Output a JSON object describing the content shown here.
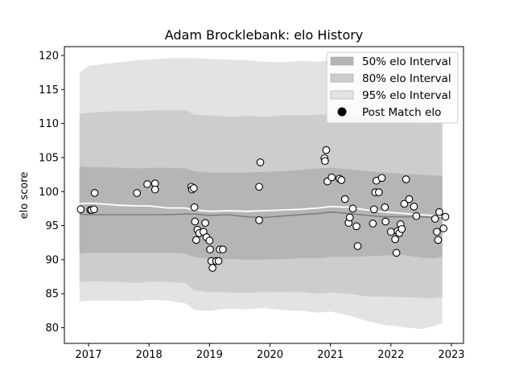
{
  "chart_data": {
    "type": "area",
    "title": "Adam Brocklebank: elo History",
    "xlabel": "",
    "ylabel": "elo score",
    "xlim": [
      2016.6,
      2023.2
    ],
    "ylim": [
      77.7,
      121.3
    ],
    "x_ticks": [
      2017,
      2018,
      2019,
      2020,
      2021,
      2022,
      2023
    ],
    "y_ticks": [
      80,
      85,
      90,
      95,
      100,
      105,
      110,
      115,
      120
    ],
    "grid": false,
    "legend_placement": "top-right",
    "colors": {
      "band_95": "#e3e3e3",
      "band_80": "#cdcdcd",
      "band_50": "#b5b5b5",
      "median_line": "#7f7f7f",
      "mean_line": "#ffffff",
      "points_fill": "#ffffff",
      "points_edge": "#000000",
      "legend_marker": "#000000"
    },
    "legend": [
      {
        "label": "50% elo Interval",
        "kind": "patch",
        "color": "#b5b5b5"
      },
      {
        "label": "80% elo Interval",
        "kind": "patch",
        "color": "#cdcdcd"
      },
      {
        "label": "95% elo Interval",
        "kind": "patch",
        "color": "#e3e3e3"
      },
      {
        "label": "Post Match elo",
        "kind": "marker",
        "color": "#000000"
      }
    ],
    "intervals": {
      "x": [
        2016.85,
        2017.0,
        2017.2,
        2017.5,
        2017.8,
        2018.0,
        2018.3,
        2018.6,
        2018.75,
        2019.0,
        2019.3,
        2019.6,
        2019.9,
        2020.2,
        2020.5,
        2020.8,
        2021.0,
        2021.3,
        2021.6,
        2021.9,
        2022.2,
        2022.5,
        2022.7,
        2022.85
      ],
      "band_95": {
        "lower": [
          83.8,
          84.0,
          84.0,
          84.0,
          83.9,
          84.1,
          84.0,
          83.6,
          82.6,
          82.5,
          82.8,
          82.7,
          82.9,
          82.6,
          82.5,
          82.2,
          82.4,
          81.8,
          81.0,
          80.4,
          80.1,
          79.8,
          80.2,
          80.6
        ],
        "upper": [
          117.4,
          118.5,
          118.7,
          119.0,
          119.3,
          119.4,
          119.6,
          119.6,
          119.6,
          119.5,
          119.4,
          119.3,
          119.1,
          119.0,
          119.2,
          119.1,
          119.3,
          119.1,
          119.2,
          119.3,
          119.0,
          119.2,
          119.3,
          119.4
        ]
      },
      "band_80": {
        "lower": [
          86.7,
          86.8,
          86.8,
          86.7,
          86.6,
          86.8,
          86.7,
          86.6,
          85.5,
          85.2,
          85.2,
          85.1,
          85.3,
          85.2,
          85.3,
          85.0,
          85.2,
          85.0,
          84.6,
          84.6,
          84.5,
          84.4,
          84.3,
          84.5
        ],
        "upper": [
          111.4,
          111.6,
          111.7,
          111.8,
          111.8,
          111.9,
          112.0,
          112.0,
          111.3,
          111.2,
          111.0,
          111.1,
          111.0,
          111.2,
          111.2,
          111.3,
          111.4,
          111.3,
          111.0,
          110.8,
          110.7,
          110.4,
          110.3,
          110.1
        ]
      },
      "band_50": {
        "lower": [
          90.9,
          91.0,
          91.0,
          91.0,
          91.0,
          91.0,
          91.0,
          90.9,
          90.4,
          90.1,
          90.1,
          90.0,
          90.0,
          90.1,
          90.2,
          90.2,
          90.4,
          90.4,
          90.5,
          90.6,
          90.7,
          90.3,
          90.2,
          90.4
        ],
        "upper": [
          103.7,
          103.6,
          103.6,
          103.5,
          103.4,
          103.5,
          103.5,
          103.4,
          103.0,
          102.8,
          102.8,
          102.8,
          102.9,
          103.0,
          103.2,
          103.4,
          103.5,
          103.3,
          103.0,
          102.8,
          102.6,
          102.5,
          102.4,
          102.3
        ]
      },
      "median": [
        96.7,
        96.6,
        96.6,
        96.6,
        96.6,
        96.6,
        96.6,
        96.7,
        96.7,
        96.5,
        96.6,
        96.3,
        96.2,
        96.4,
        96.6,
        96.8,
        97.0,
        96.8,
        96.5,
        96.3,
        96.3,
        96.3,
        96.2,
        96.2
      ],
      "mean": [
        98.2,
        98.3,
        98.2,
        98.0,
        97.9,
        97.9,
        97.6,
        97.6,
        97.3,
        97.1,
        97.2,
        97.1,
        97.2,
        97.3,
        97.4,
        97.6,
        97.8,
        97.7,
        97.3,
        97.0,
        96.8,
        96.6,
        96.5,
        96.3
      ]
    },
    "series": [
      {
        "name": "Post Match elo",
        "points": [
          [
            2016.87,
            97.4
          ],
          [
            2017.03,
            97.3
          ],
          [
            2017.05,
            97.3
          ],
          [
            2017.09,
            97.4
          ],
          [
            2017.1,
            99.8
          ],
          [
            2017.8,
            99.8
          ],
          [
            2017.97,
            101.1
          ],
          [
            2018.1,
            101.2
          ],
          [
            2018.1,
            100.3
          ],
          [
            2018.7,
            100.7
          ],
          [
            2018.71,
            100.3
          ],
          [
            2018.74,
            100.5
          ],
          [
            2018.75,
            97.7
          ],
          [
            2018.76,
            95.6
          ],
          [
            2018.8,
            94.4
          ],
          [
            2018.83,
            93.9
          ],
          [
            2018.78,
            92.9
          ],
          [
            2018.9,
            94.1
          ],
          [
            2018.93,
            95.4
          ],
          [
            2018.95,
            93.3
          ],
          [
            2019.0,
            92.8
          ],
          [
            2019.01,
            91.5
          ],
          [
            2019.03,
            89.8
          ],
          [
            2019.05,
            88.8
          ],
          [
            2019.11,
            89.8
          ],
          [
            2019.15,
            89.8
          ],
          [
            2019.17,
            91.5
          ],
          [
            2019.22,
            91.5
          ],
          [
            2019.82,
            95.8
          ],
          [
            2019.82,
            100.7
          ],
          [
            2019.84,
            104.3
          ],
          [
            2020.9,
            104.9
          ],
          [
            2020.91,
            104.5
          ],
          [
            2020.93,
            106.1
          ],
          [
            2020.95,
            101.5
          ],
          [
            2021.02,
            102.1
          ],
          [
            2021.15,
            101.9
          ],
          [
            2021.18,
            101.7
          ],
          [
            2021.24,
            98.9
          ],
          [
            2021.3,
            95.4
          ],
          [
            2021.32,
            96.2
          ],
          [
            2021.37,
            97.5
          ],
          [
            2021.43,
            94.9
          ],
          [
            2021.45,
            92.0
          ],
          [
            2021.7,
            95.3
          ],
          [
            2021.72,
            97.4
          ],
          [
            2021.74,
            99.9
          ],
          [
            2021.76,
            101.6
          ],
          [
            2021.8,
            99.9
          ],
          [
            2021.85,
            102.0
          ],
          [
            2021.9,
            97.7
          ],
          [
            2021.91,
            95.6
          ],
          [
            2022.0,
            94.1
          ],
          [
            2022.07,
            93.0
          ],
          [
            2022.09,
            91.0
          ],
          [
            2022.11,
            94.2
          ],
          [
            2022.14,
            93.9
          ],
          [
            2022.16,
            95.2
          ],
          [
            2022.18,
            94.5
          ],
          [
            2022.22,
            98.2
          ],
          [
            2022.25,
            101.8
          ],
          [
            2022.3,
            98.9
          ],
          [
            2022.38,
            97.8
          ],
          [
            2022.42,
            96.4
          ],
          [
            2022.73,
            96.0
          ],
          [
            2022.76,
            94.1
          ],
          [
            2022.78,
            92.9
          ],
          [
            2022.8,
            97.0
          ],
          [
            2022.87,
            94.6
          ],
          [
            2022.9,
            96.3
          ]
        ]
      }
    ]
  }
}
